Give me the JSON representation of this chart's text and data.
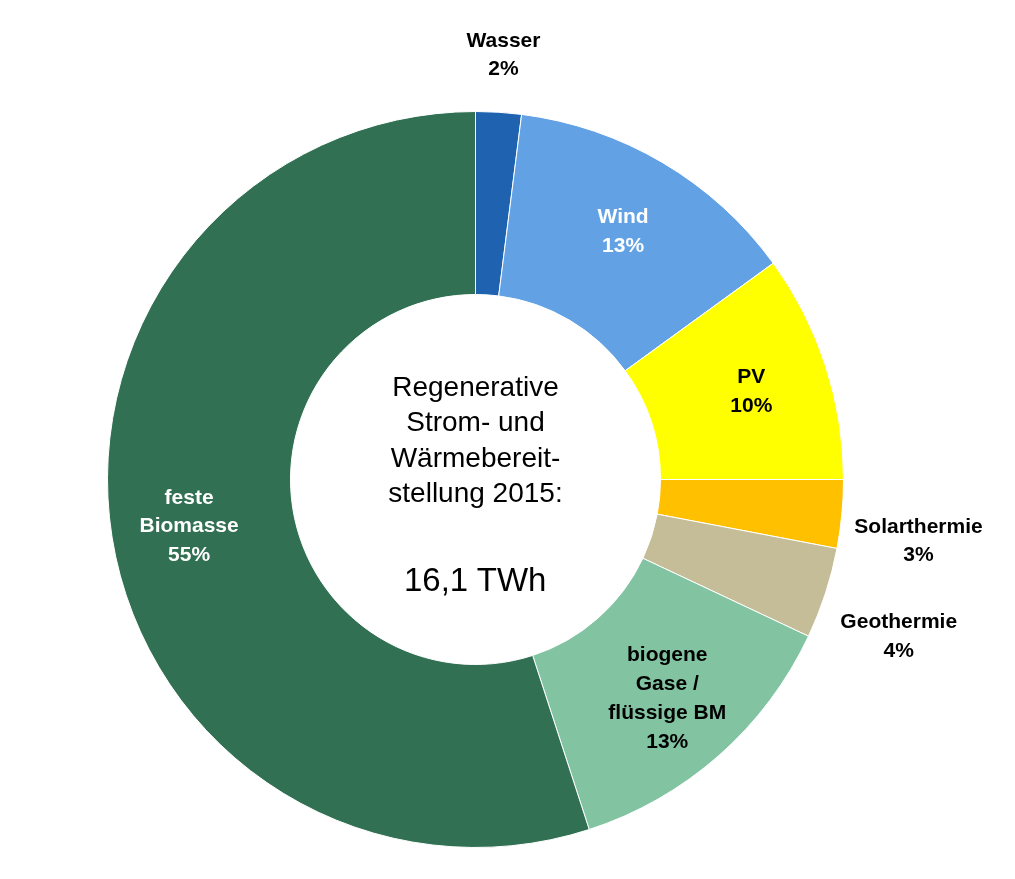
{
  "chart_data": {
    "type": "donut",
    "title": "Regenerative\nStrom- und\nWärmebereit-\nstellung 2015:\n16,1 TWh",
    "categories": [
      "Wasser",
      "Wind",
      "PV",
      "Solarthermie",
      "Geothermie",
      "biogene\nGase /\nflüssige BM",
      "feste\nBiomasse"
    ],
    "values": [
      2,
      13,
      10,
      3,
      4,
      13,
      55
    ],
    "value_labels": [
      "2%",
      "13%",
      "10%",
      "3%",
      "4%",
      "13%",
      "55%"
    ],
    "colors": [
      "#1f63b0",
      "#62a1e4",
      "#ffff00",
      "#ffc000",
      "#c4bd97",
      "#82c4a2",
      "#317053"
    ]
  }
}
